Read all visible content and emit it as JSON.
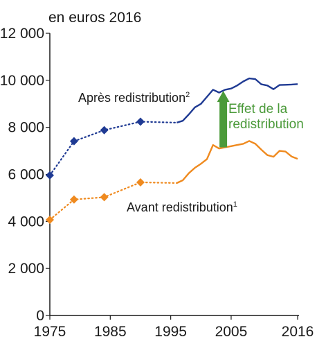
{
  "chart_data": {
    "type": "line",
    "unit_label": "en euros 2016",
    "ylim": [
      0,
      12000
    ],
    "yticks": [
      0,
      2000,
      4000,
      6000,
      8000,
      10000,
      12000
    ],
    "ytick_labels": [
      "0",
      "2 000",
      "4 000",
      "6 000",
      "8 000",
      "10 000",
      "12 000"
    ],
    "xlim": [
      1975,
      2016
    ],
    "xtick_labels": [
      "1975",
      "1985",
      "1995",
      "2005",
      "2016"
    ],
    "xticks": [
      1975,
      1985,
      1995,
      2005,
      2016
    ],
    "grid": false,
    "colors": {
      "after": "#1f3a93",
      "before": "#ef8a1f",
      "effect": "#4b9a3a",
      "axis": "#1a1a1a"
    },
    "series": [
      {
        "name": "Après redistribution",
        "footnote": "2",
        "points_dotted": [
          [
            1975,
            5960
          ],
          [
            1979,
            7410
          ],
          [
            1984,
            7880
          ],
          [
            1990,
            8240
          ],
          [
            1996,
            8200
          ]
        ],
        "marked_points": [
          [
            1975,
            5960
          ],
          [
            1979,
            7410
          ],
          [
            1984,
            7880
          ],
          [
            1990,
            8240
          ]
        ],
        "points_solid": [
          [
            1996,
            8200
          ],
          [
            1997,
            8280
          ],
          [
            1998,
            8550
          ],
          [
            1999,
            8850
          ],
          [
            2000,
            9000
          ],
          [
            2001,
            9300
          ],
          [
            2002,
            9600
          ],
          [
            2003,
            9480
          ],
          [
            2004,
            9600
          ],
          [
            2005,
            9650
          ],
          [
            2006,
            9780
          ],
          [
            2007,
            9950
          ],
          [
            2008,
            10080
          ],
          [
            2009,
            10050
          ],
          [
            2010,
            9830
          ],
          [
            2011,
            9780
          ],
          [
            2012,
            9620
          ],
          [
            2013,
            9800
          ],
          [
            2014,
            9810
          ],
          [
            2015,
            9820
          ],
          [
            2016,
            9840
          ]
        ]
      },
      {
        "name": "Avant redistribution",
        "footnote": "1",
        "points_dotted": [
          [
            1975,
            4070
          ],
          [
            1979,
            4930
          ],
          [
            1984,
            5030
          ],
          [
            1990,
            5660
          ],
          [
            1996,
            5630
          ]
        ],
        "marked_points": [
          [
            1975,
            4070
          ],
          [
            1979,
            4930
          ],
          [
            1984,
            5030
          ],
          [
            1990,
            5660
          ]
        ],
        "points_solid": [
          [
            1996,
            5630
          ],
          [
            1997,
            5750
          ],
          [
            1998,
            6050
          ],
          [
            1999,
            6280
          ],
          [
            2000,
            6450
          ],
          [
            2001,
            6650
          ],
          [
            2002,
            7250
          ],
          [
            2003,
            7100
          ],
          [
            2004,
            7150
          ],
          [
            2005,
            7200
          ],
          [
            2006,
            7250
          ],
          [
            2007,
            7300
          ],
          [
            2008,
            7420
          ],
          [
            2009,
            7300
          ],
          [
            2010,
            7050
          ],
          [
            2011,
            6820
          ],
          [
            2012,
            6750
          ],
          [
            2013,
            7000
          ],
          [
            2014,
            6970
          ],
          [
            2015,
            6760
          ],
          [
            2016,
            6660
          ]
        ]
      }
    ],
    "annotation": {
      "lines": [
        "Effet de la",
        "redistribution"
      ],
      "arrow_x": 2003.7,
      "arrow_from": 7150,
      "arrow_to": 9550
    }
  }
}
